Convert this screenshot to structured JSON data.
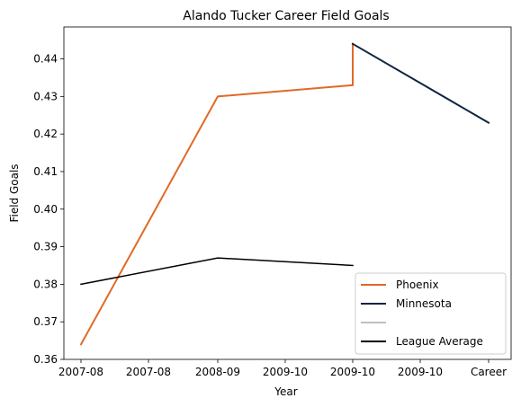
{
  "chart_data": {
    "type": "line",
    "title": "Alando Tucker Career Field Goals",
    "xlabel": "Year",
    "ylabel": "Field Goals",
    "x_tick_labels": [
      "2007-08",
      "2007-08",
      "2008-09",
      "2009-10",
      "2009-10",
      "2009-10",
      "Career"
    ],
    "y_ticks": [
      "0.36",
      "0.37",
      "0.38",
      "0.39",
      "0.40",
      "0.41",
      "0.42",
      "0.43",
      "0.44"
    ],
    "ylim": [
      0.36,
      0.4485
    ],
    "series": [
      {
        "name": "Phoenix",
        "color": "#e06a26",
        "points": [
          {
            "x": "2007-08",
            "y": 0.364
          },
          {
            "x": "2008-09",
            "y": 0.43
          },
          {
            "x": "2009-10",
            "y": 0.433
          },
          {
            "x": "2009-10",
            "y": 0.444
          }
        ]
      },
      {
        "name": "Minnesota",
        "color": "#0f2440",
        "points": [
          {
            "x": "2009-10",
            "y": 0.444
          },
          {
            "x": "Career",
            "y": 0.423
          }
        ]
      },
      {
        "name": "",
        "color": "#c0c0c0",
        "points": []
      },
      {
        "name": "League Average",
        "color": "#000000",
        "points": [
          {
            "x": "2007-08",
            "y": 0.38
          },
          {
            "x": "2008-09",
            "y": 0.387
          },
          {
            "x": "2009-10",
            "y": 0.385
          }
        ]
      }
    ],
    "legend_position": "lower-right"
  }
}
